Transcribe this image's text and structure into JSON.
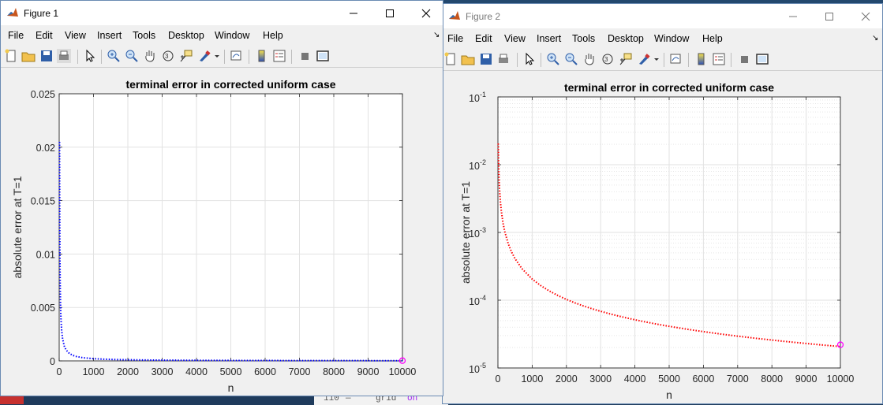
{
  "figure1": {
    "title": "Figure 1",
    "menu": [
      "File",
      "Edit",
      "View",
      "Insert",
      "Tools",
      "Desktop",
      "Window",
      "Help"
    ],
    "plot": {
      "title": "terminal error in corrected uniform case",
      "xlabel": "n",
      "ylabel": "absolute error at T=1",
      "xticks": [
        "0",
        "1000",
        "2000",
        "3000",
        "4000",
        "5000",
        "6000",
        "7000",
        "8000",
        "9000",
        "10000"
      ],
      "yticks": [
        "0",
        "0.005",
        "0.01",
        "0.015",
        "0.02",
        "0.025"
      ]
    }
  },
  "figure2": {
    "title": "Figure 2",
    "menu": [
      "File",
      "Edit",
      "View",
      "Insert",
      "Tools",
      "Desktop",
      "Window",
      "Help"
    ],
    "plot": {
      "title": "terminal error in corrected uniform case",
      "xlabel": "n",
      "ylabel": "absolute error at T=1",
      "xticks": [
        "0",
        "1000",
        "2000",
        "3000",
        "4000",
        "5000",
        "6000",
        "7000",
        "8000",
        "9000",
        "10000"
      ],
      "yticks": [
        {
          "base": "10",
          "exp": "-1"
        },
        {
          "base": "10",
          "exp": "-2"
        },
        {
          "base": "10",
          "exp": "-3"
        },
        {
          "base": "10",
          "exp": "-4"
        },
        {
          "base": "10",
          "exp": "-5"
        }
      ]
    }
  },
  "background_editor": {
    "line_number": "110",
    "dash": "—",
    "code_word": "grid",
    "code_keyword": "on"
  },
  "chart_data": [
    {
      "type": "line",
      "title": "terminal error in corrected uniform case",
      "xlabel": "n",
      "ylabel": "absolute error at T=1",
      "xlim": [
        0,
        10000
      ],
      "ylim": [
        0,
        0.025
      ],
      "yscale": "linear",
      "grid": true,
      "series": [
        {
          "color": "#0000ff",
          "style": "dotted",
          "x": [
            10,
            20,
            50,
            100,
            200,
            500,
            1000,
            2000,
            5000,
            10000
          ],
          "y": [
            0.0205,
            0.0103,
            0.0042,
            0.0022,
            0.0011,
            0.00045,
            0.00022,
            0.00011,
            4.5e-05,
            2.2e-05
          ]
        }
      ],
      "highlight_marker": {
        "x": 10000,
        "y": 2.2e-05,
        "shape": "circle",
        "color": "#ff00ff"
      }
    },
    {
      "type": "line",
      "title": "terminal error in corrected uniform case",
      "xlabel": "n",
      "ylabel": "absolute error at T=1",
      "xlim": [
        0,
        10000
      ],
      "ylim": [
        1e-05,
        0.1
      ],
      "yscale": "log",
      "grid": true,
      "minor_grid": true,
      "series": [
        {
          "color": "#ff0000",
          "style": "dotted",
          "x": [
            10,
            20,
            50,
            100,
            200,
            500,
            1000,
            2000,
            5000,
            10000
          ],
          "y": [
            0.0205,
            0.0103,
            0.0042,
            0.0022,
            0.0011,
            0.00045,
            0.00022,
            0.00011,
            4.5e-05,
            2.2e-05
          ]
        }
      ],
      "highlight_marker": {
        "x": 10000,
        "y": 2.2e-05,
        "shape": "circle",
        "color": "#ff00ff"
      }
    }
  ]
}
